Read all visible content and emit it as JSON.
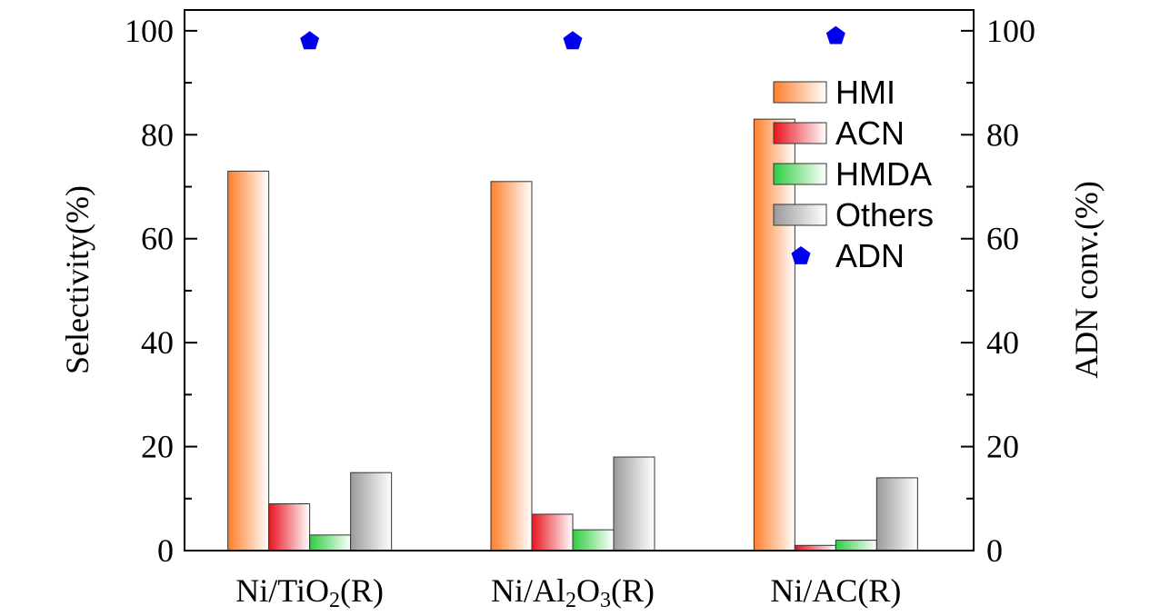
{
  "chart_data": {
    "type": "bar",
    "categories": [
      "Ni/TiO2(R)",
      "Ni/Al2O3(R)",
      "Ni/AC(R)"
    ],
    "category_labels": [
      {
        "parts": [
          {
            "t": "Ni/TiO"
          },
          {
            "t": "2",
            "sub": true
          },
          {
            "t": "(R)"
          }
        ]
      },
      {
        "parts": [
          {
            "t": "Ni/Al"
          },
          {
            "t": "2",
            "sub": true
          },
          {
            "t": "O"
          },
          {
            "t": "3",
            "sub": true
          },
          {
            "t": "(R)"
          }
        ]
      },
      {
        "parts": [
          {
            "t": "Ni/AC(R)"
          }
        ]
      }
    ],
    "series": [
      {
        "name": "HMI",
        "values": [
          73,
          71,
          83
        ],
        "color": "#ff7f2a",
        "axis": "left"
      },
      {
        "name": "ACN",
        "values": [
          9,
          7,
          1
        ],
        "color": "#e8141e",
        "axis": "left"
      },
      {
        "name": "HMDA",
        "values": [
          3,
          4,
          2
        ],
        "color": "#2ecc40",
        "axis": "left"
      },
      {
        "name": "Others",
        "values": [
          15,
          18,
          14
        ],
        "color": "#9a9a9a",
        "axis": "left"
      }
    ],
    "scatter_series": {
      "name": "ADN",
      "values": [
        98,
        98,
        99
      ],
      "color": "#0000ee",
      "marker": "pentagon",
      "axis": "right"
    },
    "ylabel": "Selectivity(%)",
    "y2label": "ADN conv.(%)",
    "ylim": [
      0,
      104
    ],
    "y2lim": [
      0,
      104
    ],
    "yticks": [
      0,
      20,
      40,
      60,
      80,
      100
    ],
    "legend_position": "top-right",
    "grid": false
  }
}
